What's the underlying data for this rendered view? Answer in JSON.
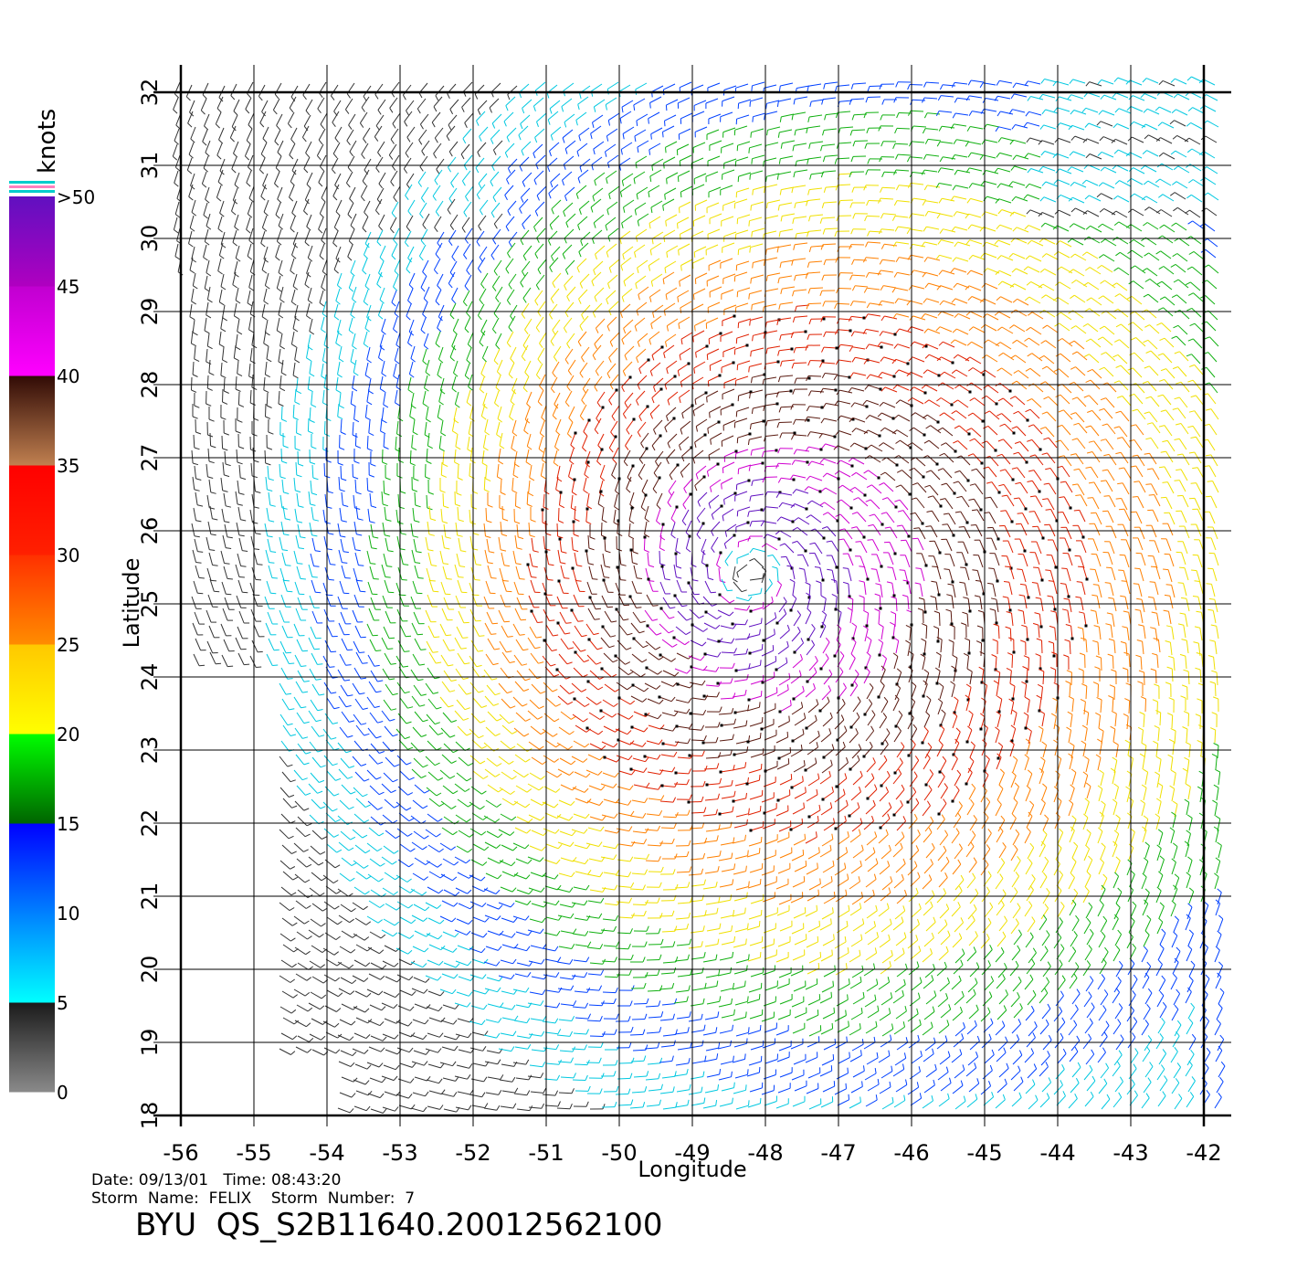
{
  "colorbar": {
    "title": "knots",
    "ticks": [
      "0",
      "5",
      "10",
      "15",
      "20",
      "25",
      "30",
      "35",
      "40",
      "45",
      ">50"
    ],
    "segments": [
      {
        "from": 0,
        "to": 5,
        "colors": [
          "#8a8a8a",
          "#1a1a1a"
        ]
      },
      {
        "from": 5,
        "to": 10,
        "colors": [
          "#00ffff",
          "#0080ff"
        ]
      },
      {
        "from": 10,
        "to": 15,
        "colors": [
          "#0080ff",
          "#0000ff"
        ]
      },
      {
        "from": 15,
        "to": 20,
        "colors": [
          "#006400",
          "#00ff00"
        ]
      },
      {
        "from": 20,
        "to": 25,
        "colors": [
          "#ffff00",
          "#ffc800"
        ]
      },
      {
        "from": 25,
        "to": 30,
        "colors": [
          "#ff8c00",
          "#ff3000"
        ]
      },
      {
        "from": 30,
        "to": 35,
        "colors": [
          "#ff2000",
          "#ff0000"
        ]
      },
      {
        "from": 35,
        "to": 40,
        "colors": [
          "#c08050",
          "#300a05"
        ]
      },
      {
        "from": 40,
        "to": 45,
        "colors": [
          "#ff00ff",
          "#c000d0"
        ]
      },
      {
        "from": 45,
        "to": 50,
        "colors": [
          "#b000c0",
          "#6010c0"
        ]
      }
    ]
  },
  "map": {
    "x_label": "Longitude",
    "y_label": "Latitude",
    "lon_range": [
      -56,
      -42
    ],
    "lat_range": [
      18,
      32
    ],
    "lon_ticks": [
      "-56",
      "-55",
      "-54",
      "-53",
      "-52",
      "-51",
      "-50",
      "-49",
      "-48",
      "-47",
      "-46",
      "-45",
      "-44",
      "-43",
      "-42"
    ],
    "lat_ticks": [
      "18",
      "19",
      "20",
      "21",
      "22",
      "23",
      "24",
      "25",
      "26",
      "27",
      "28",
      "29",
      "30",
      "31",
      "32"
    ],
    "storm_center": {
      "lon": -48.2,
      "lat": 25.4
    },
    "wind_field": "cyclonic vortex, max winds >50 knots near center"
  },
  "footer": {
    "date_time": "Date: 09/13/01   Time: 08:43:20",
    "storm": "Storm  Name:  FELIX    Storm  Number:  7",
    "product": "BYU  QS_S2B11640.20012562100"
  }
}
